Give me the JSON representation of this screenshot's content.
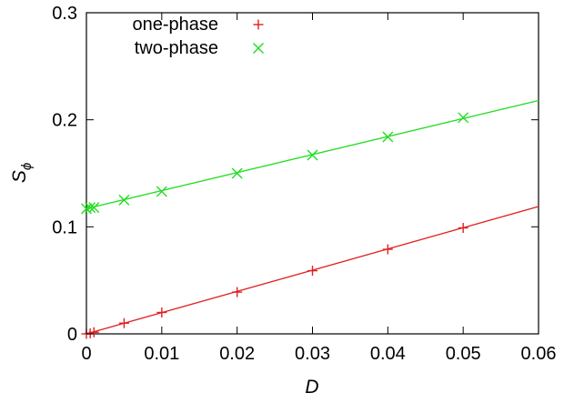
{
  "chart_data": {
    "type": "scatter",
    "xlabel": "D",
    "ylabel": "S",
    "ylabel_subscript": "ϕ",
    "xlim": [
      0,
      0.06
    ],
    "ylim": [
      0,
      0.3
    ],
    "x_ticks": [
      "0",
      "0.01",
      "0.02",
      "0.03",
      "0.04",
      "0.05",
      "0.06"
    ],
    "y_ticks": [
      "0",
      "0.1",
      "0.2",
      "0.3"
    ],
    "grid": false,
    "legend_position": "top-left",
    "series": [
      {
        "name": "one-phase",
        "marker": "plus",
        "color": "#e02020",
        "x": [
          0,
          0.0005,
          0.001,
          0.005,
          0.01,
          0.02,
          0.03,
          0.04,
          0.05
        ],
        "y": [
          0,
          0.0005,
          0.0015,
          0.01,
          0.02,
          0.039,
          0.059,
          0.079,
          0.099
        ],
        "fit_line": [
          [
            0,
            0
          ],
          [
            0.06,
            0.119
          ]
        ]
      },
      {
        "name": "two-phase",
        "marker": "cross",
        "color": "#22dd22",
        "x": [
          0,
          0.0005,
          0.001,
          0.005,
          0.01,
          0.02,
          0.03,
          0.04,
          0.05
        ],
        "y": [
          0.117,
          0.118,
          0.118,
          0.125,
          0.133,
          0.15,
          0.167,
          0.184,
          0.202
        ],
        "fit_line": [
          [
            0,
            0.117
          ],
          [
            0.06,
            0.218
          ]
        ]
      }
    ]
  }
}
